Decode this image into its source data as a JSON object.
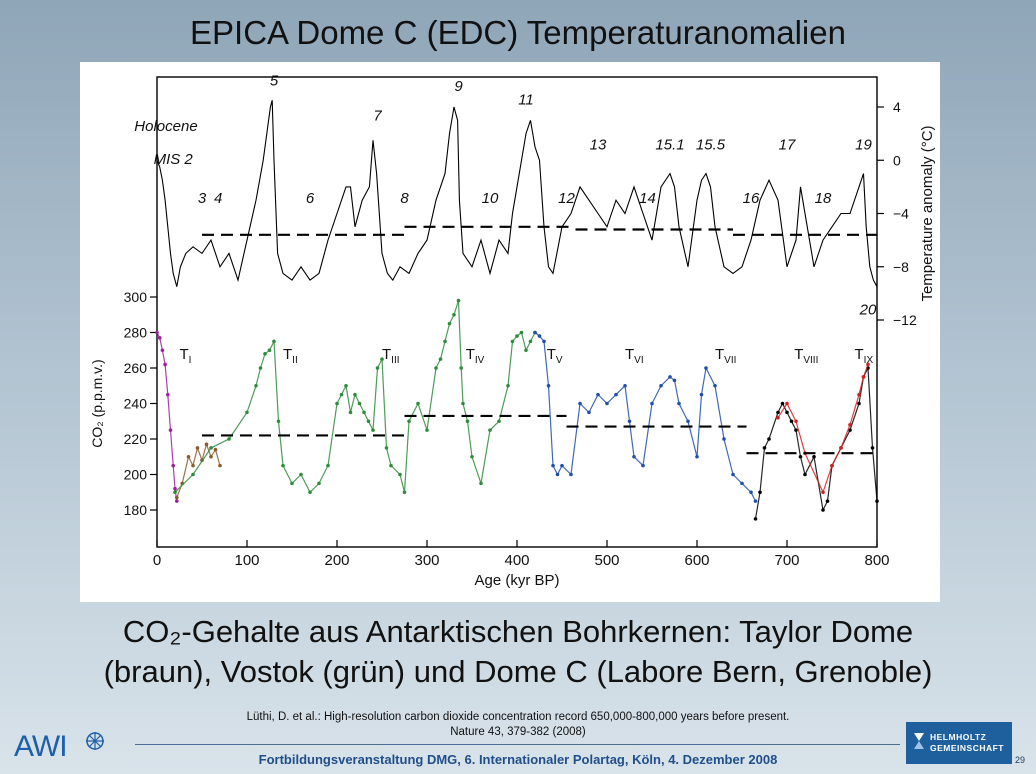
{
  "slide": {
    "title": "EPICA Dome C (EDC) Temperaturanomalien",
    "caption_line1": "CO₂-Gehalte aus Antarktischen Bohrkernen: Taylor Dome",
    "caption_line2": "(braun), Vostok (grün) und Dome C (Labore Bern, Grenoble)",
    "ref_line1": "Lüthi, D. et al.:  High-resolution carbon dioxide concentration record 650,000-800,000 years before present.",
    "ref_line2": "Nature 43, 379-382 (2008)",
    "footer": "Fortbildungsveranstaltung DMG, 6. Internationaler Polartag, Köln, 4. Dezember 2008",
    "logo_text": "AWI",
    "partner_line1": "HELMHOLTZ",
    "partner_line2": "GEMEINSCHAFT",
    "page_number": "29"
  },
  "chart_data": {
    "type": "line",
    "xlabel": "Age (kyr BP)",
    "xlim": [
      0,
      800
    ],
    "xticks": [
      0,
      100,
      200,
      300,
      400,
      500,
      600,
      700,
      800
    ],
    "temperature": {
      "ylabel": "Temperature anomaly (°C)",
      "ylim": [
        -12,
        6
      ],
      "yticks": [
        4,
        0,
        -4,
        -8,
        -12
      ],
      "color": "#000000",
      "x": [
        0,
        3,
        6,
        9,
        12,
        15,
        18,
        22,
        26,
        32,
        40,
        50,
        60,
        70,
        80,
        90,
        100,
        110,
        118,
        122,
        126,
        128,
        130,
        134,
        140,
        150,
        160,
        170,
        180,
        190,
        200,
        210,
        215,
        220,
        228,
        236,
        240,
        244,
        246,
        250,
        256,
        262,
        270,
        280,
        290,
        300,
        310,
        320,
        325,
        330,
        334,
        336,
        340,
        350,
        360,
        370,
        380,
        390,
        395,
        400,
        405,
        410,
        415,
        420,
        425,
        430,
        435,
        440,
        450,
        460,
        470,
        480,
        490,
        500,
        510,
        520,
        530,
        540,
        550,
        560,
        570,
        575,
        580,
        590,
        600,
        605,
        610,
        615,
        620,
        630,
        640,
        650,
        660,
        670,
        680,
        690,
        700,
        710,
        715,
        720,
        730,
        740,
        750,
        760,
        770,
        780,
        785,
        788,
        792,
        796,
        800
      ],
      "y": [
        0,
        -0.5,
        -1.5,
        -3,
        -5,
        -7,
        -8.5,
        -9.5,
        -8,
        -7,
        -6.5,
        -7,
        -6,
        -8,
        -7,
        -9,
        -6,
        -3,
        0,
        2,
        4,
        4.5,
        0,
        -7,
        -8.5,
        -9,
        -8,
        -9,
        -8.5,
        -6,
        -4,
        -2,
        -2,
        -5,
        -3,
        -2,
        1.5,
        -1,
        -3,
        -7,
        -8.5,
        -9,
        -8,
        -8.5,
        -7,
        -6,
        -3,
        -1,
        2,
        4,
        3,
        -3,
        -7,
        -8,
        -6,
        -8.5,
        -6,
        -7,
        -4,
        -2,
        0,
        2,
        3,
        1,
        0,
        -5,
        -8,
        -8.5,
        -5,
        -4,
        -2,
        -3,
        -4,
        -5,
        -3,
        -4,
        -2,
        -4,
        -6,
        -2,
        -1,
        -2,
        -5,
        -8,
        -3,
        -1.5,
        -1,
        -2,
        -5,
        -8,
        -8.5,
        -8,
        -6,
        -3,
        -1.5,
        -3,
        -8,
        -6,
        -2,
        -4,
        -8,
        -6,
        -5,
        -4,
        -4,
        -2,
        -1,
        -5,
        -8,
        -9,
        -9.5
      ],
      "mean_segments": [
        {
          "x": [
            50,
            275
          ],
          "y": -5.6
        },
        {
          "x": [
            275,
            465
          ],
          "y": -5.0
        },
        {
          "x": [
            465,
            640
          ],
          "y": -5.2
        },
        {
          "x": [
            640,
            800
          ],
          "y": -5.6
        }
      ],
      "labels": [
        {
          "text": "5",
          "x": 130,
          "y": 5.6
        },
        {
          "text": "7",
          "x": 245,
          "y": 3.0
        },
        {
          "text": "9",
          "x": 335,
          "y": 5.2
        },
        {
          "text": "11",
          "x": 410,
          "y": 4.2
        },
        {
          "text": "Holocene",
          "x": 10,
          "y": 2.2
        },
        {
          "text": "MIS 2",
          "x": 18,
          "y": -0.3
        },
        {
          "text": "3",
          "x": 50,
          "y": -3.2
        },
        {
          "text": "4",
          "x": 68,
          "y": -3.2
        },
        {
          "text": "6",
          "x": 170,
          "y": -3.2
        },
        {
          "text": "8",
          "x": 275,
          "y": -3.2
        },
        {
          "text": "10",
          "x": 370,
          "y": -3.2
        },
        {
          "text": "12",
          "x": 455,
          "y": -3.2
        },
        {
          "text": "13",
          "x": 490,
          "y": 0.8
        },
        {
          "text": "14",
          "x": 545,
          "y": -3.2
        },
        {
          "text": "15.1",
          "x": 570,
          "y": 0.8
        },
        {
          "text": "15.5",
          "x": 615,
          "y": 0.8
        },
        {
          "text": "16",
          "x": 660,
          "y": -3.2
        },
        {
          "text": "17",
          "x": 700,
          "y": 0.8
        },
        {
          "text": "18",
          "x": 740,
          "y": -3.2
        },
        {
          "text": "19",
          "x": 785,
          "y": 0.8
        },
        {
          "text": "20",
          "x": 790,
          "y": -11.6
        }
      ]
    },
    "co2": {
      "ylabel": "CO₂ (p.p.m.v.)",
      "ylim": [
        170,
        300
      ],
      "yticks": [
        180,
        200,
        220,
        240,
        260,
        280,
        300
      ],
      "mean_segments": [
        {
          "x": [
            50,
            275
          ],
          "y": 222
        },
        {
          "x": [
            275,
            455
          ],
          "y": 233
        },
        {
          "x": [
            455,
            655
          ],
          "y": 227
        },
        {
          "x": [
            655,
            800
          ],
          "y": 212
        }
      ],
      "terminations": [
        {
          "text": "T",
          "sub": "I",
          "x": 25,
          "y": 265
        },
        {
          "text": "T",
          "sub": "II",
          "x": 140,
          "y": 265
        },
        {
          "text": "T",
          "sub": "III",
          "x": 250,
          "y": 265
        },
        {
          "text": "T",
          "sub": "IV",
          "x": 343,
          "y": 265
        },
        {
          "text": "T",
          "sub": "V",
          "x": 433,
          "y": 265
        },
        {
          "text": "T",
          "sub": "VI",
          "x": 520,
          "y": 265
        },
        {
          "text": "T",
          "sub": "VII",
          "x": 620,
          "y": 265
        },
        {
          "text": "T",
          "sub": "VIII",
          "x": 708,
          "y": 265
        },
        {
          "text": "T",
          "sub": "IX",
          "x": 775,
          "y": 265
        }
      ],
      "series": [
        {
          "name": "Dome C (Holocene)",
          "color": "#9b1fa0",
          "x": [
            0,
            3,
            6,
            9,
            12,
            15,
            18,
            20,
            22
          ],
          "y": [
            280,
            277,
            270,
            262,
            245,
            225,
            205,
            192,
            185
          ]
        },
        {
          "name": "Taylor Dome",
          "color": "#8b5a2b",
          "x": [
            22,
            28,
            35,
            40,
            45,
            50,
            55,
            60,
            65,
            70
          ],
          "y": [
            187,
            195,
            210,
            205,
            215,
            208,
            217,
            210,
            214,
            205
          ]
        },
        {
          "name": "Vostok",
          "color": "#2e8b3a",
          "x": [
            20,
            40,
            60,
            80,
            100,
            110,
            115,
            120,
            125,
            130,
            135,
            140,
            150,
            160,
            170,
            180,
            190,
            200,
            205,
            210,
            215,
            220,
            225,
            230,
            235,
            240,
            245,
            250,
            255,
            260,
            270,
            275,
            280,
            290,
            300,
            310,
            315,
            320,
            325,
            330,
            335,
            338,
            340,
            345,
            350,
            360,
            370,
            380,
            390,
            395,
            400,
            405,
            410,
            415,
            420
          ],
          "y": [
            190,
            200,
            215,
            220,
            235,
            250,
            260,
            268,
            270,
            275,
            230,
            205,
            195,
            200,
            190,
            195,
            205,
            240,
            245,
            250,
            235,
            245,
            240,
            235,
            230,
            225,
            260,
            265,
            215,
            205,
            200,
            190,
            230,
            240,
            225,
            260,
            265,
            275,
            285,
            290,
            298,
            260,
            240,
            230,
            210,
            195,
            225,
            230,
            250,
            275,
            278,
            280,
            270,
            275,
            280
          ]
        },
        {
          "name": "Dome C (Bern)",
          "color": "#1f4fa8",
          "x": [
            420,
            425,
            430,
            435,
            440,
            445,
            450,
            460,
            470,
            480,
            490,
            500,
            510,
            520,
            525,
            530,
            540,
            550,
            560,
            570,
            575,
            580,
            590,
            600,
            605,
            610,
            620,
            630,
            640,
            650,
            660,
            665
          ],
          "y": [
            280,
            278,
            275,
            250,
            205,
            200,
            205,
            200,
            240,
            235,
            245,
            240,
            245,
            250,
            230,
            210,
            205,
            240,
            250,
            255,
            253,
            240,
            230,
            210,
            245,
            260,
            250,
            220,
            200,
            195,
            190,
            185
          ]
        },
        {
          "name": "Dome C (Grenoble)",
          "color": "#000000",
          "x": [
            665,
            670,
            675,
            680,
            690,
            695,
            700,
            705,
            710,
            715,
            720,
            730,
            740,
            745,
            750,
            760,
            770,
            780,
            785,
            790,
            795,
            800
          ],
          "y": [
            175,
            190,
            215,
            220,
            235,
            240,
            235,
            230,
            225,
            210,
            200,
            210,
            180,
            185,
            205,
            215,
            225,
            240,
            255,
            260,
            215,
            185
          ]
        },
        {
          "name": "Dome C (Bern, red)",
          "color": "#d42020",
          "x": [
            690,
            700,
            710,
            720,
            740,
            750,
            760,
            770,
            780,
            785,
            790
          ],
          "y": [
            232,
            240,
            230,
            212,
            190,
            205,
            215,
            228,
            245,
            255,
            262
          ]
        }
      ]
    }
  }
}
